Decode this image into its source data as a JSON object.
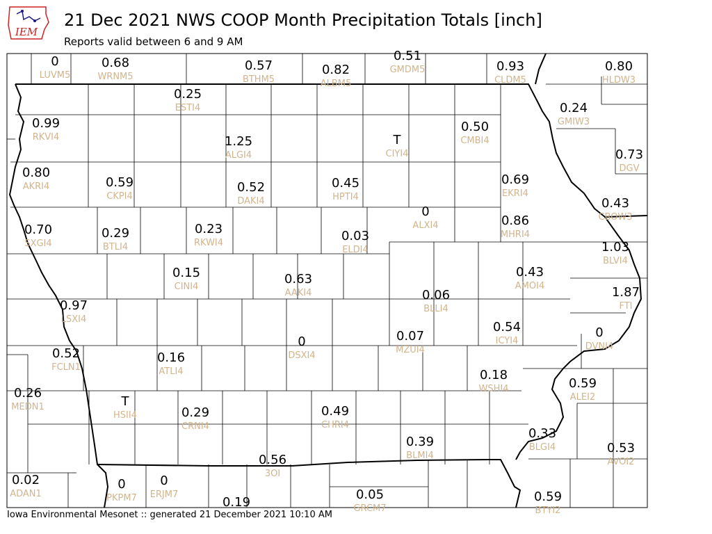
{
  "header": {
    "title": "21 Dec 2021 NWS COOP Month Precipitation Totals [inch]",
    "subtitle": "Reports valid between 6 and 9 AM",
    "logo_text": "IEM"
  },
  "footer": {
    "text": "Iowa Environmental Mesonet :: generated 21 December 2021 10:10 AM"
  },
  "colors": {
    "value": "#000000",
    "station": "#d2b48c",
    "logo_red": "#cc2222",
    "logo_blue": "#1a1a8c"
  },
  "stations": [
    {
      "id": "LUVM5",
      "value": "0"
    },
    {
      "id": "WRNM5",
      "value": "0.68"
    },
    {
      "id": "BTHM5",
      "value": "0.57"
    },
    {
      "id": "ALBM5",
      "value": "0.82"
    },
    {
      "id": "GMDM5",
      "value": "0.51"
    },
    {
      "id": "CLDM5",
      "value": "0.93"
    },
    {
      "id": "HLDW3",
      "value": "0.80"
    },
    {
      "id": "ESTI4",
      "value": "0.25"
    },
    {
      "id": "GMIW3",
      "value": "0.24"
    },
    {
      "id": "RKVI4",
      "value": "0.99"
    },
    {
      "id": "ALGI4",
      "value": "1.25"
    },
    {
      "id": "CIYI4",
      "value": "T"
    },
    {
      "id": "CMBI4",
      "value": "0.50"
    },
    {
      "id": "DGV",
      "value": "0.73"
    },
    {
      "id": "AKRI4",
      "value": "0.80"
    },
    {
      "id": "CKPI4",
      "value": "0.59"
    },
    {
      "id": "DAKI4",
      "value": "0.52"
    },
    {
      "id": "HPTI4",
      "value": "0.45"
    },
    {
      "id": "EKRI4",
      "value": "0.69"
    },
    {
      "id": "CBOW3",
      "value": "0.43"
    },
    {
      "id": "ALXI4",
      "value": "0"
    },
    {
      "id": "MHRI4",
      "value": "0.86"
    },
    {
      "id": "SXGI4",
      "value": "0.70"
    },
    {
      "id": "BTLI4",
      "value": "0.29"
    },
    {
      "id": "RKWI4",
      "value": "0.23"
    },
    {
      "id": "ELDI4",
      "value": "0.03"
    },
    {
      "id": "BLVI4",
      "value": "1.03"
    },
    {
      "id": "CINI4",
      "value": "0.15"
    },
    {
      "id": "AAKI4",
      "value": "0.63"
    },
    {
      "id": "AMOI4",
      "value": "0.43"
    },
    {
      "id": "BLLI4",
      "value": "0.06"
    },
    {
      "id": "FTI",
      "value": "1.87"
    },
    {
      "id": "LSXI4",
      "value": "0.97"
    },
    {
      "id": "ICYI4",
      "value": "0.54"
    },
    {
      "id": "DVNI4",
      "value": "0"
    },
    {
      "id": "DSXI4",
      "value": "0"
    },
    {
      "id": "MZUI4",
      "value": "0.07"
    },
    {
      "id": "FCLN1",
      "value": "0.52"
    },
    {
      "id": "ATLI4",
      "value": "0.16"
    },
    {
      "id": "WSHI4",
      "value": "0.18"
    },
    {
      "id": "ALEI2",
      "value": "0.59"
    },
    {
      "id": "MEDN1",
      "value": "0.26"
    },
    {
      "id": "HSII4",
      "value": "T"
    },
    {
      "id": "CRNI4",
      "value": "0.29"
    },
    {
      "id": "CHRI4",
      "value": "0.49"
    },
    {
      "id": "BLMI4",
      "value": "0.39"
    },
    {
      "id": "BLGI4",
      "value": "0.33"
    },
    {
      "id": "AVOI2",
      "value": "0.53"
    },
    {
      "id": "3OI",
      "value": "0.56"
    },
    {
      "id": "ADAN1",
      "value": "0.02"
    },
    {
      "id": "PKPM7",
      "value": "0"
    },
    {
      "id": "ERJM7",
      "value": "0"
    },
    {
      "id": "GRCM7",
      "value": "0.05"
    },
    {
      "id": "BTYI2",
      "value": "0.59"
    },
    {
      "id": "",
      "value": "0.19"
    }
  ]
}
